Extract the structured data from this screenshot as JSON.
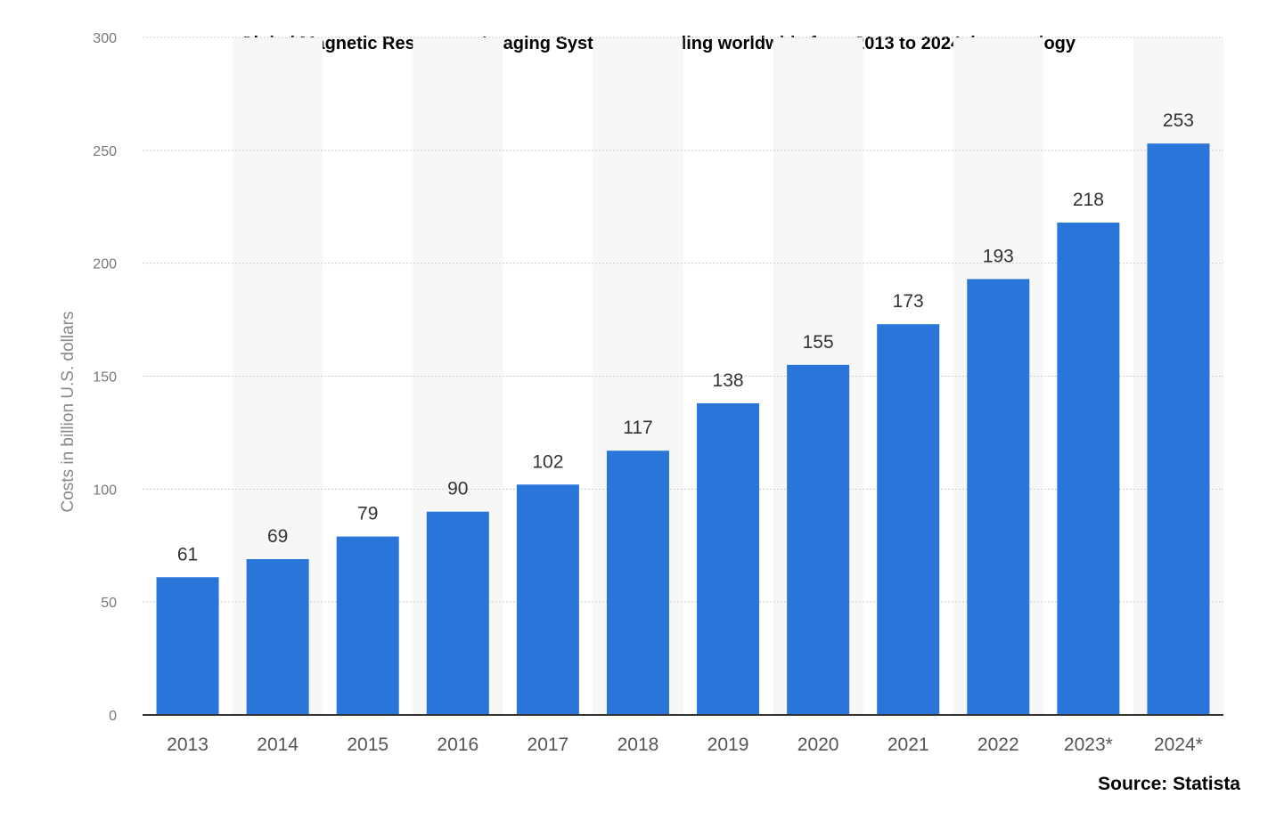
{
  "colors": {
    "bar": "#2a75d9",
    "stripe": "#f7f7f8",
    "grid": "#cccccc",
    "axis": "#333333"
  },
  "source": "Source: Statista",
  "chart_data": {
    "type": "bar",
    "title": "Global Magnetic Resonance Imaging Systems spending worldwide from 2013 to 2024, by oncology",
    "xlabel": "",
    "ylabel": "Costs in billion U.S. dollars",
    "categories": [
      "2013",
      "2014",
      "2015",
      "2016",
      "2017",
      "2018",
      "2019",
      "2020",
      "2021",
      "2022",
      "2023*",
      "2024*"
    ],
    "values": [
      61,
      69,
      79,
      90,
      102,
      117,
      138,
      155,
      173,
      193,
      218,
      253
    ],
    "ylim": [
      0,
      300
    ],
    "yticks": [
      0,
      50,
      100,
      150,
      200,
      250,
      300
    ],
    "grid": true,
    "legend": "none"
  }
}
